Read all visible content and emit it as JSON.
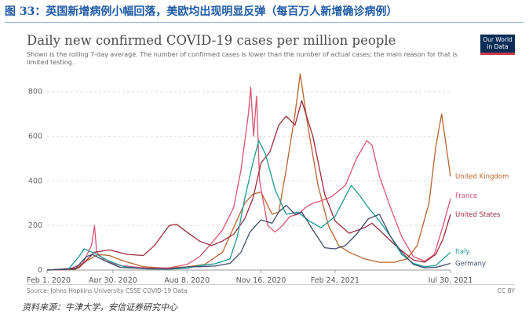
{
  "caption": "图 33：英国新增病例小幅回落，美欧均出现明显反弹（每百万人新增确诊病例）",
  "owid": {
    "line1": "Our World",
    "line2": "in Data"
  },
  "source": "Source: Johns Hopkins University CSSE COVID-19 Data",
  "license": "CC BY",
  "footnote": "资料来源：牛津大学，安信证券研究中心",
  "colors": {
    "United Kingdom": "#b8632b",
    "France": "#d95572",
    "United States": "#9b2c3c",
    "Italy": "#1e9a96",
    "Germany": "#3e4c6b",
    "grid": "#dddddd",
    "caption": "#1f5aa6"
  },
  "chart_data": {
    "type": "line",
    "title": "Daily new confirmed COVID-19 cases per million people",
    "subtitle": "Shown is the rolling 7-day average. The number of confirmed cases is lower than the number of actual cases; the main reason for that is limited testing.",
    "x_ticks": [
      "Feb 1, 2020",
      "Apr 30, 2020",
      "Aug 8, 2020",
      "Nov 16, 2020",
      "Feb 24, 2021",
      "Jul 30, 2021"
    ],
    "y_ticks": [
      0,
      200,
      400,
      600,
      800
    ],
    "ylim": [
      0,
      880
    ],
    "xlim": [
      "2020-02-01",
      "2021-07-30"
    ],
    "grid": true,
    "series": [
      {
        "name": "United Kingdom",
        "points": [
          [
            "2020-02-01",
            0
          ],
          [
            "2020-03-10",
            2
          ],
          [
            "2020-03-25",
            40
          ],
          [
            "2020-04-10",
            70
          ],
          [
            "2020-04-25",
            65
          ],
          [
            "2020-05-15",
            40
          ],
          [
            "2020-06-10",
            15
          ],
          [
            "2020-07-10",
            8
          ],
          [
            "2020-08-08",
            14
          ],
          [
            "2020-09-01",
            25
          ],
          [
            "2020-09-25",
            80
          ],
          [
            "2020-10-10",
            190
          ],
          [
            "2020-10-25",
            300
          ],
          [
            "2020-11-05",
            340
          ],
          [
            "2020-11-16",
            350
          ],
          [
            "2020-12-01",
            250
          ],
          [
            "2020-12-10",
            260
          ],
          [
            "2020-12-20",
            450
          ],
          [
            "2021-01-01",
            700
          ],
          [
            "2021-01-08",
            880
          ],
          [
            "2021-01-18",
            650
          ],
          [
            "2021-02-01",
            380
          ],
          [
            "2021-02-15",
            200
          ],
          [
            "2021-03-01",
            110
          ],
          [
            "2021-03-15",
            80
          ],
          [
            "2021-04-05",
            50
          ],
          [
            "2021-04-25",
            35
          ],
          [
            "2021-05-15",
            35
          ],
          [
            "2021-06-01",
            50
          ],
          [
            "2021-06-15",
            110
          ],
          [
            "2021-07-01",
            300
          ],
          [
            "2021-07-10",
            550
          ],
          [
            "2021-07-18",
            700
          ],
          [
            "2021-07-30",
            420
          ]
        ]
      },
      {
        "name": "France",
        "points": [
          [
            "2020-02-01",
            0
          ],
          [
            "2020-03-01",
            2
          ],
          [
            "2020-03-20",
            30
          ],
          [
            "2020-04-01",
            110
          ],
          [
            "2020-04-05",
            200
          ],
          [
            "2020-04-08",
            80
          ],
          [
            "2020-04-20",
            40
          ],
          [
            "2020-05-10",
            20
          ],
          [
            "2020-06-15",
            8
          ],
          [
            "2020-07-15",
            10
          ],
          [
            "2020-08-08",
            25
          ],
          [
            "2020-08-25",
            60
          ],
          [
            "2020-09-10",
            120
          ],
          [
            "2020-09-25",
            180
          ],
          [
            "2020-10-10",
            280
          ],
          [
            "2020-10-20",
            450
          ],
          [
            "2020-10-30",
            700
          ],
          [
            "2020-11-02",
            820
          ],
          [
            "2020-11-06",
            600
          ],
          [
            "2020-11-10",
            780
          ],
          [
            "2020-11-14",
            400
          ],
          [
            "2020-11-25",
            200
          ],
          [
            "2020-12-05",
            170
          ],
          [
            "2020-12-15",
            200
          ],
          [
            "2020-12-25",
            240
          ],
          [
            "2021-01-05",
            250
          ],
          [
            "2021-01-15",
            280
          ],
          [
            "2021-01-25",
            300
          ],
          [
            "2021-02-05",
            310
          ],
          [
            "2021-02-20",
            330
          ],
          [
            "2021-03-10",
            380
          ],
          [
            "2021-03-25",
            500
          ],
          [
            "2021-04-08",
            580
          ],
          [
            "2021-04-15",
            560
          ],
          [
            "2021-04-25",
            420
          ],
          [
            "2021-05-10",
            280
          ],
          [
            "2021-05-25",
            150
          ],
          [
            "2021-06-10",
            60
          ],
          [
            "2021-06-25",
            40
          ],
          [
            "2021-07-08",
            70
          ],
          [
            "2021-07-20",
            200
          ],
          [
            "2021-07-30",
            320
          ]
        ]
      },
      {
        "name": "United States",
        "points": [
          [
            "2020-02-01",
            0
          ],
          [
            "2020-03-15",
            10
          ],
          [
            "2020-04-05",
            80
          ],
          [
            "2020-04-25",
            90
          ],
          [
            "2020-05-20",
            70
          ],
          [
            "2020-06-10",
            65
          ],
          [
            "2020-06-25",
            110
          ],
          [
            "2020-07-15",
            200
          ],
          [
            "2020-07-25",
            205
          ],
          [
            "2020-08-08",
            170
          ],
          [
            "2020-08-25",
            130
          ],
          [
            "2020-09-10",
            110
          ],
          [
            "2020-09-25",
            130
          ],
          [
            "2020-10-10",
            160
          ],
          [
            "2020-10-25",
            230
          ],
          [
            "2020-11-05",
            320
          ],
          [
            "2020-11-16",
            480
          ],
          [
            "2020-11-28",
            530
          ],
          [
            "2020-12-10",
            650
          ],
          [
            "2020-12-20",
            690
          ],
          [
            "2021-01-01",
            650
          ],
          [
            "2021-01-10",
            760
          ],
          [
            "2021-01-25",
            600
          ],
          [
            "2021-02-10",
            340
          ],
          [
            "2021-02-24",
            220
          ],
          [
            "2021-03-15",
            165
          ],
          [
            "2021-04-05",
            190
          ],
          [
            "2021-04-15",
            210
          ],
          [
            "2021-05-01",
            160
          ],
          [
            "2021-05-20",
            100
          ],
          [
            "2021-06-10",
            45
          ],
          [
            "2021-06-25",
            35
          ],
          [
            "2021-07-10",
            70
          ],
          [
            "2021-07-20",
            140
          ],
          [
            "2021-07-30",
            250
          ]
        ]
      },
      {
        "name": "Italy",
        "points": [
          [
            "2020-02-01",
            0
          ],
          [
            "2020-03-01",
            5
          ],
          [
            "2020-03-15",
            60
          ],
          [
            "2020-03-22",
            95
          ],
          [
            "2020-04-05",
            75
          ],
          [
            "2020-04-25",
            40
          ],
          [
            "2020-05-15",
            15
          ],
          [
            "2020-06-15",
            5
          ],
          [
            "2020-07-15",
            4
          ],
          [
            "2020-08-08",
            8
          ],
          [
            "2020-08-25",
            20
          ],
          [
            "2020-09-15",
            28
          ],
          [
            "2020-10-05",
            50
          ],
          [
            "2020-10-15",
            150
          ],
          [
            "2020-10-25",
            320
          ],
          [
            "2020-11-05",
            480
          ],
          [
            "2020-11-13",
            580
          ],
          [
            "2020-11-22",
            520
          ],
          [
            "2020-12-05",
            360
          ],
          [
            "2020-12-20",
            250
          ],
          [
            "2021-01-05",
            260
          ],
          [
            "2021-01-20",
            220
          ],
          [
            "2021-02-05",
            190
          ],
          [
            "2021-02-24",
            240
          ],
          [
            "2021-03-10",
            330
          ],
          [
            "2021-03-18",
            380
          ],
          [
            "2021-03-28",
            340
          ],
          [
            "2021-04-10",
            280
          ],
          [
            "2021-04-25",
            220
          ],
          [
            "2021-05-10",
            150
          ],
          [
            "2021-05-25",
            70
          ],
          [
            "2021-06-10",
            30
          ],
          [
            "2021-06-25",
            15
          ],
          [
            "2021-07-10",
            20
          ],
          [
            "2021-07-30",
            80
          ]
        ]
      },
      {
        "name": "Germany",
        "points": [
          [
            "2020-02-01",
            0
          ],
          [
            "2020-03-10",
            5
          ],
          [
            "2020-03-25",
            60
          ],
          [
            "2020-04-02",
            70
          ],
          [
            "2020-04-20",
            40
          ],
          [
            "2020-05-10",
            12
          ],
          [
            "2020-06-15",
            6
          ],
          [
            "2020-07-15",
            5
          ],
          [
            "2020-08-08",
            14
          ],
          [
            "2020-08-25",
            15
          ],
          [
            "2020-09-15",
            18
          ],
          [
            "2020-10-05",
            30
          ],
          [
            "2020-10-20",
            80
          ],
          [
            "2020-11-01",
            170
          ],
          [
            "2020-11-16",
            225
          ],
          [
            "2020-12-01",
            210
          ],
          [
            "2020-12-10",
            260
          ],
          [
            "2020-12-20",
            290
          ],
          [
            "2021-01-01",
            250
          ],
          [
            "2021-01-10",
            260
          ],
          [
            "2021-01-25",
            180
          ],
          [
            "2021-02-10",
            100
          ],
          [
            "2021-02-24",
            95
          ],
          [
            "2021-03-10",
            110
          ],
          [
            "2021-03-25",
            160
          ],
          [
            "2021-04-10",
            230
          ],
          [
            "2021-04-25",
            250
          ],
          [
            "2021-05-10",
            150
          ],
          [
            "2021-05-25",
            80
          ],
          [
            "2021-06-10",
            25
          ],
          [
            "2021-06-25",
            10
          ],
          [
            "2021-07-10",
            12
          ],
          [
            "2021-07-30",
            30
          ]
        ]
      }
    ]
  }
}
